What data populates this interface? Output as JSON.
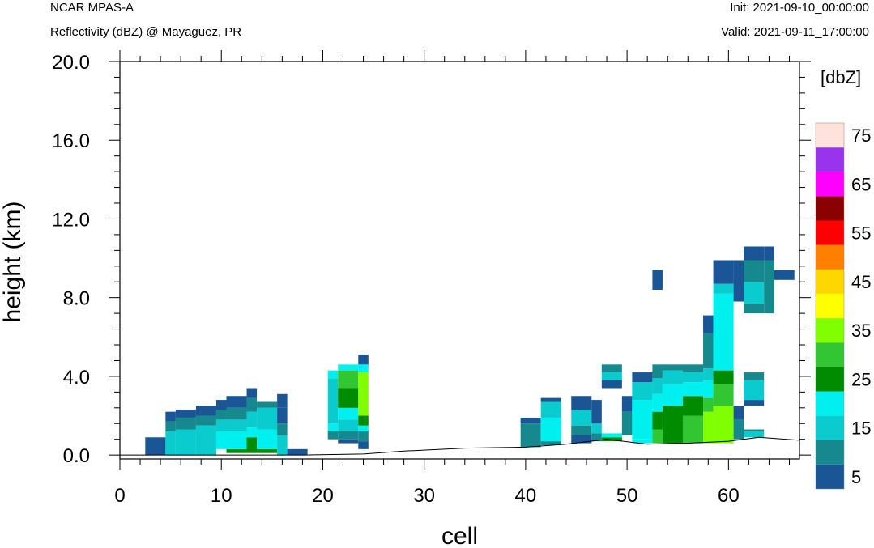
{
  "header": {
    "model": "NCAR MPAS-A",
    "field": "Reflectivity (dBZ) @ Mayaguez, PR",
    "init": "Init: 2021-09-10_00:00:00",
    "valid": "Valid: 2021-09-11_17:00:00"
  },
  "chart_data": {
    "type": "heatmap",
    "xlabel": "cell",
    "ylabel": "height (km)",
    "xlim": [
      0,
      67
    ],
    "ylim": [
      -0.2,
      20.0
    ],
    "x_ticks": [
      "0",
      "10",
      "20",
      "30",
      "40",
      "50",
      "60"
    ],
    "x_tick_values": [
      0,
      10,
      20,
      30,
      40,
      50,
      60
    ],
    "y_ticks": [
      "0.0",
      "4.0",
      "8.0",
      "12.0",
      "16.0",
      "20.0"
    ],
    "y_tick_values": [
      0,
      4,
      8,
      12,
      16,
      20
    ],
    "colorbar": {
      "title": "[dbZ]",
      "labels": [
        "5",
        "15",
        "25",
        "35",
        "45",
        "55",
        "65",
        "75"
      ],
      "levels": [
        5,
        10,
        15,
        20,
        25,
        30,
        35,
        40,
        45,
        50,
        55,
        60,
        65,
        70,
        75
      ],
      "colors": [
        "#1a5596",
        "#16898f",
        "#0acbce",
        "#00f0f0",
        "#008b00",
        "#33c633",
        "#80ff00",
        "#ffff00",
        "#ffd700",
        "#ff8000",
        "#ff0000",
        "#8b0000",
        "#ff00ff",
        "#9933ee",
        "#ffe2db"
      ]
    },
    "terrain": [
      [
        0,
        0
      ],
      [
        18,
        0
      ],
      [
        24,
        0.05
      ],
      [
        28,
        0.2
      ],
      [
        34,
        0.35
      ],
      [
        40,
        0.4
      ],
      [
        44,
        0.55
      ],
      [
        48,
        0.8
      ],
      [
        52,
        0.55
      ],
      [
        56,
        0.6
      ],
      [
        60,
        0.7
      ],
      [
        63,
        0.9
      ],
      [
        67,
        0.75
      ]
    ],
    "cells": [
      [
        2.5,
        4.5,
        0,
        0.9,
        5
      ],
      [
        4.5,
        5.5,
        0,
        1.2,
        15
      ],
      [
        4.5,
        5.5,
        1.2,
        1.7,
        10
      ],
      [
        4.5,
        5.5,
        1.7,
        2.2,
        5
      ],
      [
        5.5,
        7.5,
        0,
        1.3,
        15
      ],
      [
        5.5,
        7.5,
        1.3,
        1.9,
        10
      ],
      [
        5.5,
        7.5,
        1.9,
        2.3,
        5
      ],
      [
        7.5,
        9.5,
        0,
        1.5,
        15
      ],
      [
        7.5,
        9.5,
        1.5,
        2.0,
        10
      ],
      [
        7.5,
        9.5,
        2.0,
        2.5,
        5
      ],
      [
        9.5,
        10.5,
        0.3,
        1.2,
        20
      ],
      [
        9.5,
        10.5,
        1.2,
        1.8,
        15
      ],
      [
        9.5,
        10.5,
        1.8,
        2.3,
        10
      ],
      [
        9.5,
        10.5,
        2.3,
        2.8,
        5
      ],
      [
        10.5,
        12.5,
        0.1,
        0.3,
        25
      ],
      [
        10.5,
        12.5,
        0.3,
        1.2,
        20
      ],
      [
        10.5,
        12.5,
        1.2,
        1.8,
        15
      ],
      [
        10.5,
        12.5,
        1.8,
        2.4,
        10
      ],
      [
        10.5,
        12.5,
        2.4,
        3.0,
        5
      ],
      [
        12.5,
        13.5,
        0.1,
        0.9,
        25
      ],
      [
        12.5,
        13.5,
        0.9,
        1.4,
        20
      ],
      [
        12.5,
        13.5,
        1.4,
        2.2,
        15
      ],
      [
        12.5,
        13.5,
        2.2,
        2.9,
        10
      ],
      [
        12.5,
        13.5,
        2.9,
        3.4,
        5
      ],
      [
        13.5,
        15.5,
        0.1,
        0.3,
        25
      ],
      [
        13.5,
        15.5,
        0.3,
        1.3,
        20
      ],
      [
        13.5,
        15.5,
        1.3,
        2.4,
        15
      ],
      [
        13.5,
        15.5,
        2.4,
        2.7,
        10
      ],
      [
        15.5,
        16.5,
        0,
        1.0,
        15
      ],
      [
        15.5,
        16.5,
        1.0,
        1.6,
        10
      ],
      [
        15.5,
        16.5,
        1.6,
        2.4,
        5
      ],
      [
        15.5,
        16.5,
        2.4,
        3.1,
        5
      ],
      [
        16.5,
        18.5,
        0,
        0.3,
        5
      ],
      [
        20.5,
        21.5,
        0.8,
        1.2,
        10
      ],
      [
        20.5,
        21.5,
        1.2,
        1.6,
        20
      ],
      [
        20.5,
        21.5,
        1.6,
        3.9,
        15
      ],
      [
        20.5,
        21.5,
        3.9,
        4.3,
        20
      ],
      [
        21.5,
        23.5,
        0.6,
        0.8,
        5
      ],
      [
        21.5,
        23.5,
        0.8,
        1.2,
        10
      ],
      [
        21.5,
        23.5,
        1.2,
        1.8,
        15
      ],
      [
        21.5,
        23.5,
        1.8,
        2.4,
        20
      ],
      [
        21.5,
        23.5,
        2.4,
        3.4,
        25
      ],
      [
        21.5,
        23.5,
        3.4,
        4.3,
        30
      ],
      [
        21.5,
        23.5,
        4.3,
        4.6,
        20
      ],
      [
        23.5,
        24.5,
        0.3,
        0.7,
        5
      ],
      [
        23.5,
        24.5,
        0.7,
        1.2,
        10
      ],
      [
        23.5,
        24.5,
        1.2,
        1.5,
        20
      ],
      [
        23.5,
        24.5,
        1.5,
        2.0,
        25
      ],
      [
        23.5,
        24.5,
        2.0,
        4.2,
        35
      ],
      [
        23.5,
        24.5,
        4.2,
        4.6,
        20
      ],
      [
        23.5,
        24.5,
        4.6,
        5.1,
        5
      ],
      [
        39.5,
        41.5,
        0.4,
        1.6,
        10
      ],
      [
        39.5,
        41.5,
        1.6,
        1.9,
        5
      ],
      [
        41.5,
        43.5,
        0.5,
        0.7,
        10
      ],
      [
        41.5,
        43.5,
        0.7,
        1.9,
        20
      ],
      [
        41.5,
        43.5,
        1.9,
        2.7,
        15
      ],
      [
        41.5,
        43.5,
        2.7,
        2.9,
        5
      ],
      [
        44.5,
        46.5,
        0.6,
        1.0,
        5
      ],
      [
        44.5,
        46.5,
        1.0,
        1.5,
        10
      ],
      [
        44.5,
        46.5,
        1.5,
        2.3,
        15
      ],
      [
        44.5,
        46.5,
        2.3,
        3.0,
        5
      ],
      [
        46.5,
        47.5,
        0.7,
        1.1,
        10
      ],
      [
        46.5,
        47.5,
        1.1,
        1.6,
        15
      ],
      [
        46.5,
        47.5,
        1.6,
        2.8,
        5
      ],
      [
        47.5,
        49.5,
        0.7,
        0.9,
        25
      ],
      [
        47.5,
        49.5,
        0.9,
        1.1,
        20
      ],
      [
        47.5,
        49.5,
        3.4,
        3.8,
        5
      ],
      [
        47.5,
        49.5,
        3.8,
        4.2,
        15
      ],
      [
        47.5,
        49.5,
        4.2,
        4.6,
        10
      ],
      [
        49.5,
        50.5,
        1.0,
        2.2,
        10
      ],
      [
        49.5,
        50.5,
        2.2,
        3.0,
        5
      ],
      [
        50.5,
        52.5,
        0.6,
        0.8,
        20
      ],
      [
        50.5,
        52.5,
        0.8,
        2.8,
        20
      ],
      [
        50.5,
        52.5,
        2.8,
        3.7,
        15
      ],
      [
        50.5,
        52.5,
        3.7,
        4.2,
        5
      ],
      [
        52.5,
        53.5,
        0.6,
        1.3,
        30
      ],
      [
        52.5,
        53.5,
        1.3,
        2.2,
        25
      ],
      [
        52.5,
        53.5,
        2.2,
        3.1,
        20
      ],
      [
        52.5,
        53.5,
        3.1,
        3.9,
        15
      ],
      [
        52.5,
        53.5,
        3.9,
        4.6,
        10
      ],
      [
        52.5,
        53.5,
        8.4,
        9.4,
        5
      ],
      [
        53.5,
        55.5,
        0.6,
        2.5,
        25
      ],
      [
        53.5,
        55.5,
        2.5,
        3.6,
        20
      ],
      [
        53.5,
        55.5,
        3.6,
        4.3,
        15
      ],
      [
        53.5,
        55.5,
        4.3,
        4.6,
        10
      ],
      [
        55.5,
        57.5,
        0.6,
        2.0,
        30
      ],
      [
        55.5,
        57.5,
        2.0,
        3.0,
        25
      ],
      [
        55.5,
        57.5,
        3.0,
        3.7,
        20
      ],
      [
        55.5,
        57.5,
        3.7,
        4.2,
        15
      ],
      [
        55.5,
        57.5,
        4.2,
        4.6,
        10
      ],
      [
        57.5,
        58.5,
        0.6,
        2.2,
        35
      ],
      [
        57.5,
        58.5,
        2.2,
        2.9,
        30
      ],
      [
        57.5,
        58.5,
        2.9,
        3.8,
        20
      ],
      [
        57.5,
        58.5,
        3.8,
        4.4,
        15
      ],
      [
        57.5,
        58.5,
        4.4,
        6.2,
        10
      ],
      [
        57.5,
        58.5,
        6.2,
        7.1,
        5
      ],
      [
        58.5,
        60.5,
        0.6,
        2.5,
        35
      ],
      [
        58.5,
        60.5,
        2.5,
        3.6,
        30
      ],
      [
        58.5,
        60.5,
        3.6,
        4.3,
        25
      ],
      [
        58.5,
        60.5,
        4.3,
        8.2,
        20
      ],
      [
        58.5,
        60.5,
        8.2,
        8.7,
        15
      ],
      [
        58.5,
        60.5,
        8.7,
        9.9,
        5
      ],
      [
        60.5,
        61.5,
        0.8,
        1.8,
        10
      ],
      [
        60.5,
        61.5,
        1.8,
        2.5,
        5
      ],
      [
        60.5,
        61.5,
        7.8,
        9.9,
        5
      ],
      [
        61.5,
        63.5,
        0.9,
        1.2,
        15
      ],
      [
        61.5,
        63.5,
        1.2,
        1.3,
        10
      ],
      [
        61.5,
        63.5,
        2.5,
        2.8,
        5
      ],
      [
        61.5,
        63.5,
        2.8,
        3.8,
        15
      ],
      [
        61.5,
        63.5,
        3.8,
        4.2,
        10
      ],
      [
        61.5,
        63.5,
        7.2,
        7.7,
        10
      ],
      [
        61.5,
        63.5,
        7.7,
        8.8,
        15
      ],
      [
        61.5,
        63.5,
        8.8,
        9.9,
        10
      ],
      [
        61.5,
        63.5,
        9.9,
        10.6,
        5
      ],
      [
        63.5,
        64.5,
        7.2,
        9.9,
        10
      ],
      [
        63.5,
        64.5,
        9.9,
        10.6,
        5
      ],
      [
        64.5,
        66.5,
        8.9,
        9.4,
        5
      ]
    ]
  }
}
